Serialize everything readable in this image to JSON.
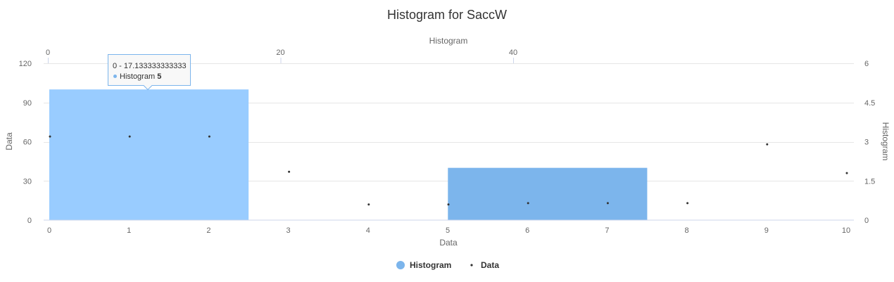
{
  "chart_data": {
    "type": "bar",
    "title": "Histogram for SaccW",
    "histogram": {
      "name": "Histogram",
      "color": "#7cb5ec",
      "highlight_color": "#99ccff",
      "x_axis_title": "Histogram",
      "x_ticks": [
        0,
        20,
        40
      ],
      "x_range": [
        0,
        68.5
      ],
      "y_axis_title": "Histogram",
      "y_ticks": [
        0,
        1.5,
        3,
        4.5,
        6
      ],
      "y_range": [
        0,
        6
      ],
      "bins": [
        {
          "from": 0,
          "to": 17.133333333333,
          "value": 5
        },
        {
          "from": 34.266666666667,
          "to": 51.4,
          "value": 2
        }
      ]
    },
    "data": {
      "name": "Data",
      "color": "#333333",
      "x_axis_title": "Data",
      "x_ticks": [
        0,
        1,
        2,
        3,
        4,
        5,
        6,
        7,
        8,
        9,
        10
      ],
      "x_range": [
        0,
        10
      ],
      "y_axis_title": "Data",
      "y_ticks": [
        0,
        30,
        60,
        90,
        120
      ],
      "y_range": [
        0,
        120
      ],
      "x": [
        0,
        1,
        2,
        3,
        4,
        5,
        6,
        7,
        8,
        9,
        10
      ],
      "y": [
        64,
        64,
        64,
        37,
        12,
        12,
        13,
        13,
        13,
        58,
        36
      ]
    },
    "grid": true,
    "legend_position": "bottom-center"
  },
  "tooltip": {
    "range_label": "0 - 17.133333333333",
    "series_label": "Histogram",
    "value_label": "5"
  }
}
